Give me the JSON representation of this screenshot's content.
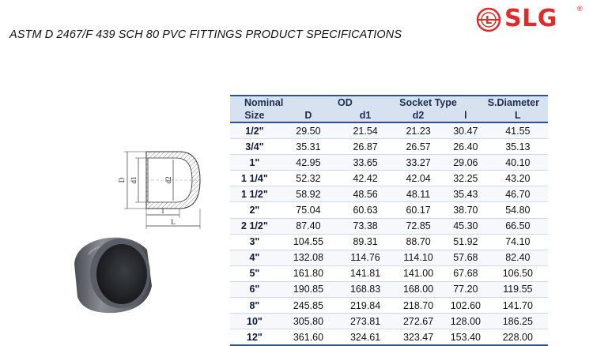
{
  "title": "ASTM D 2467/F 439 SCH 80 PVC FITTINGS PRODUCT SPECIFICATIONS",
  "logo": {
    "text": "SLG",
    "registered": "®",
    "mark_letter": "L",
    "color": "#e02b2b"
  },
  "drawing_labels": {
    "D": "D",
    "d1": "d1",
    "d2": "d2",
    "l": "l",
    "L": "L"
  },
  "table": {
    "group_headers": [
      "Nominal",
      "OD",
      "Socket Type",
      "S.Diameter"
    ],
    "column_headers": [
      "Size",
      "D",
      "d1",
      "d2",
      "l",
      "L"
    ],
    "rows": [
      [
        "1/2\"",
        "29.50",
        "21.54",
        "21.23",
        "30.47",
        "41.55"
      ],
      [
        "3/4\"",
        "35.31",
        "26.87",
        "26.57",
        "26.40",
        "35.13"
      ],
      [
        "1\"",
        "42.95",
        "33.65",
        "33.27",
        "29.06",
        "40.10"
      ],
      [
        "1 1/4\"",
        "52.32",
        "42.42",
        "42.04",
        "32.25",
        "43.20"
      ],
      [
        "1 1/2\"",
        "58.92",
        "48.56",
        "48.11",
        "35.43",
        "46.70"
      ],
      [
        "2\"",
        "75.04",
        "60.63",
        "60.17",
        "38.70",
        "54.80"
      ],
      [
        "2 1/2\"",
        "87.40",
        "73.38",
        "72.85",
        "45.30",
        "66.50"
      ],
      [
        "3\"",
        "104.55",
        "89.31",
        "88.70",
        "51.92",
        "74.10"
      ],
      [
        "4\"",
        "132.08",
        "114.76",
        "114.10",
        "57.68",
        "82.40"
      ],
      [
        "5\"",
        "161.80",
        "141.81",
        "141.00",
        "67.68",
        "106.50"
      ],
      [
        "6\"",
        "190.85",
        "168.83",
        "168.00",
        "77.20",
        "119.55"
      ],
      [
        "8\"",
        "245.85",
        "219.84",
        "218.70",
        "102.60",
        "141.70"
      ],
      [
        "10\"",
        "305.80",
        "273.81",
        "272.67",
        "128.00",
        "186.25"
      ],
      [
        "12\"",
        "361.60",
        "324.61",
        "323.47",
        "153.40",
        "228.00"
      ]
    ]
  },
  "colors": {
    "header_bg": "#d7e2f0",
    "header_text": "#1f2d52",
    "rule": "#2d5294",
    "cap_gray": "#6e7278"
  }
}
